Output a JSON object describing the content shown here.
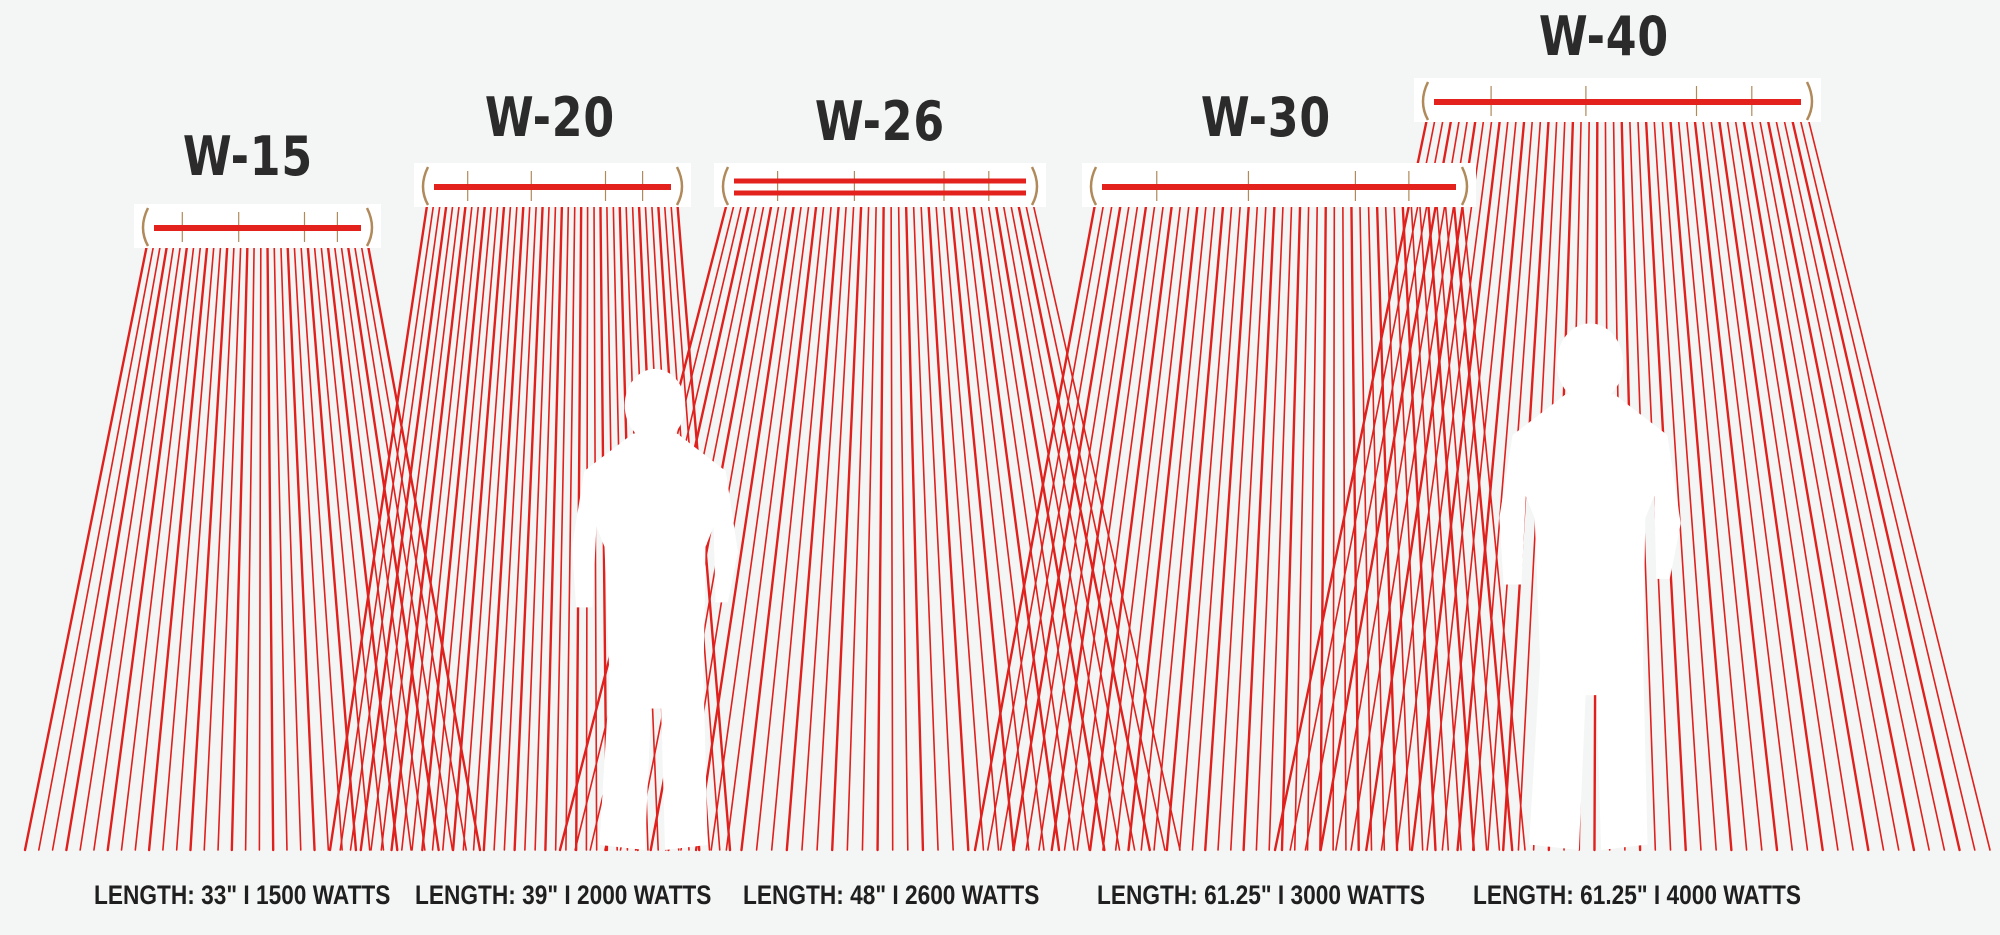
{
  "heaters": [
    {
      "model": "W-15",
      "length": "33\"",
      "watts": "1500",
      "spec": "LENGTH: 33\" I 1500 WATTS"
    },
    {
      "model": "W-20",
      "length": "39\"",
      "watts": "2000",
      "spec": "LENGTH: 39\" I 2000 WATTS"
    },
    {
      "model": "W-26",
      "length": "48\"",
      "watts": "2600",
      "spec": "LENGTH: 48\" I 2600 WATTS"
    },
    {
      "model": "W-30",
      "length": "61.25\"",
      "watts": "3000",
      "spec": "LENGTH: 61.25\" I 3000 WATTS"
    },
    {
      "model": "W-40",
      "length": "61.25\"",
      "watts": "4000",
      "spec": "LENGTH: 61.25\" I 4000 WATTS"
    }
  ],
  "colors": {
    "background": "#f4f6f5",
    "heat_ray": "#e0201c",
    "heater_element": "#e3221d",
    "heater_bracket": "#b08a5a",
    "silhouette": "#ffffff"
  }
}
